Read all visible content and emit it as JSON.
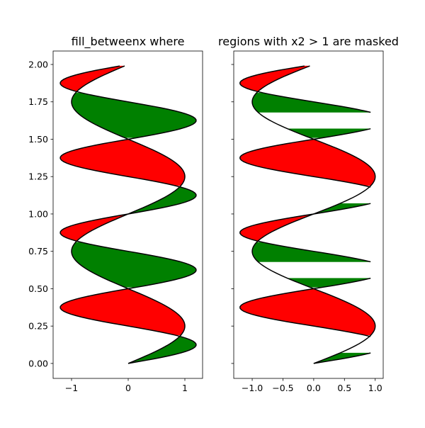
{
  "chart_data": [
    {
      "type": "area",
      "title": "fill_betweenx where",
      "y_range": [
        0,
        2
      ],
      "y_step": 0.01,
      "curves": {
        "x1": "sin(2*pi*y)",
        "x2": "1.2*sin(4*pi*y)"
      },
      "fills": [
        {
          "where": "x2 >= x1",
          "color": "#008000"
        },
        {
          "where": "x2 <= x1",
          "color": "#ff0000"
        }
      ],
      "line_color": "#000000",
      "xlim": [
        -1.325,
        1.3125
      ],
      "ylim": [
        -0.1,
        2.09
      ],
      "xticks": [
        "−1",
        "0",
        "1"
      ],
      "xtick_values": [
        -1,
        0,
        1
      ],
      "yticks": [
        "0.00",
        "0.25",
        "0.50",
        "0.75",
        "1.00",
        "1.25",
        "1.50",
        "1.75",
        "2.00"
      ],
      "ytick_values": [
        0,
        0.25,
        0.5,
        0.75,
        1,
        1.25,
        1.5,
        1.75,
        2
      ],
      "masked_above": null
    },
    {
      "type": "area",
      "title": "regions with x2 > 1 are masked",
      "y_range": [
        0,
        2
      ],
      "y_step": 0.01,
      "curves": {
        "x1": "sin(2*pi*y)",
        "x2": "1.2*sin(4*pi*y)"
      },
      "fills": [
        {
          "where": "x2 >= x1",
          "color": "#008000"
        },
        {
          "where": "x2 <= x1",
          "color": "#ff0000"
        }
      ],
      "line_color": "#000000",
      "xlim": [
        -1.3,
        1.13
      ],
      "ylim": [
        -0.1,
        2.09
      ],
      "xticks": [
        "−1.0",
        "−0.5",
        "0.0",
        "0.5",
        "1.0"
      ],
      "xtick_values": [
        -1,
        -0.5,
        0,
        0.5,
        1
      ],
      "yticks": [],
      "ytick_values": [
        0,
        0.25,
        0.5,
        0.75,
        1,
        1.25,
        1.5,
        1.75,
        2
      ],
      "masked_above": 1
    }
  ]
}
